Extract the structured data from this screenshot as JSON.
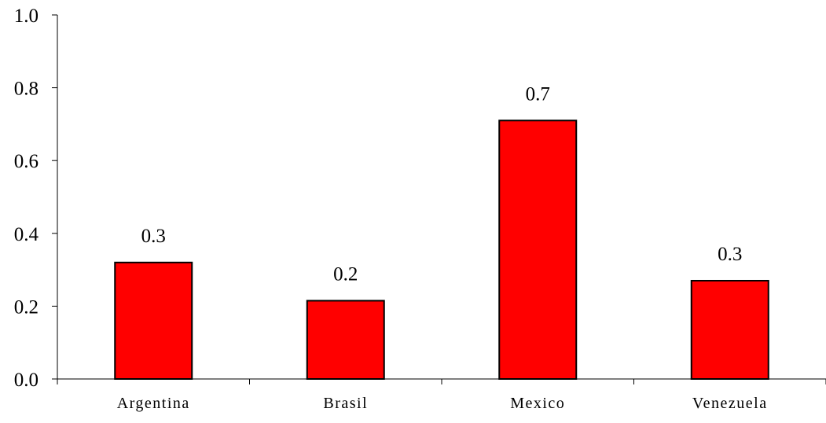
{
  "chart_data": {
    "type": "bar",
    "categories": [
      "Argentina",
      "Brasil",
      "Mexico",
      "Venezuela"
    ],
    "values": [
      0.32,
      0.215,
      0.71,
      0.27
    ],
    "data_labels": [
      "0.3",
      "0.2",
      "0.7",
      "0.3"
    ],
    "yticks": [
      "0.0",
      "0.2",
      "0.4",
      "0.6",
      "0.8",
      "1.0"
    ],
    "ylim": [
      0,
      1.0
    ],
    "grid": false,
    "legend": "none",
    "bar_color": "#ff0000",
    "bar_edge_color": "#000000",
    "axis_color": "#000000"
  }
}
